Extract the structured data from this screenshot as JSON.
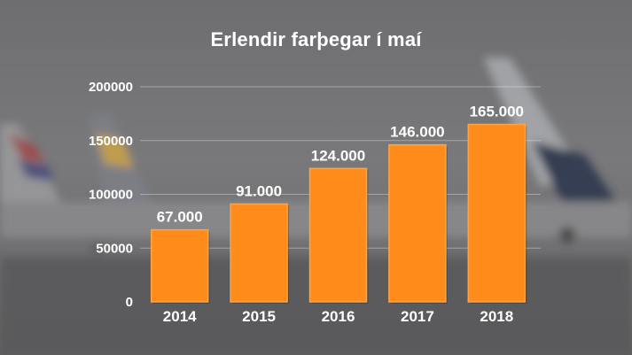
{
  "chart_data": {
    "type": "bar",
    "title": "Erlendir farþegar í maí",
    "categories": [
      "2014",
      "2015",
      "2016",
      "2017",
      "2018"
    ],
    "values": [
      67000,
      91000,
      124000,
      146000,
      165000
    ],
    "data_labels": [
      "67.000",
      "91.000",
      "124.000",
      "146.000",
      "165.000"
    ],
    "ylim": [
      0,
      200000
    ],
    "yticks": [
      0,
      50000,
      100000,
      150000,
      200000
    ],
    "ytick_labels": [
      "0",
      "50000",
      "100000",
      "150000",
      "200000"
    ],
    "xlabel": "",
    "ylabel": "",
    "grid": true,
    "bar_color": "#ff8c1a",
    "text_color": "#ffffff"
  }
}
